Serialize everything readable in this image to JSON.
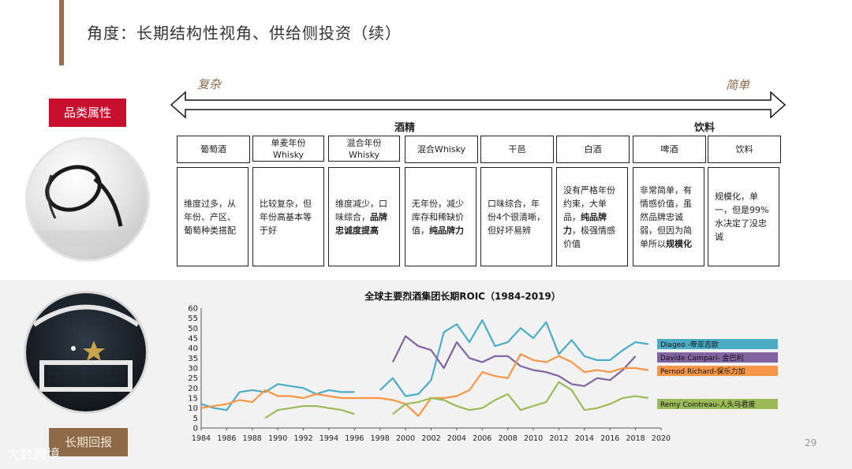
{
  "title": "角度：长期结构性视角、供给侧投资（续）",
  "category_label": "品类属性",
  "bottom_label": "长期回报",
  "arrow": {
    "left": "复杂",
    "right": "简单"
  },
  "groups": {
    "spirits": "酒精",
    "beverages": "饮料"
  },
  "categories": [
    {
      "name": "葡萄酒",
      "desc": "维度过多，从年份、产区、葡萄种类搭配",
      "bold": ""
    },
    {
      "name": "单麦年份 Whisky",
      "desc": "比较复杂，但年份高基本等于好",
      "bold": ""
    },
    {
      "name": "混合年份 Whisky",
      "desc": "维度减少，口味综合，",
      "bold": "品牌忠诚度提高"
    },
    {
      "name": "混合Whisky",
      "desc": "无年份，减少库存和稀缺价值，",
      "bold": "纯品牌力"
    },
    {
      "name": "干邑",
      "desc": "口味综合，年份4个很清晰，但好坏易辨",
      "bold": ""
    },
    {
      "name": "白酒",
      "desc": "没有严格年份约束，大单品，",
      "bold": "纯品牌力",
      "desc_after": "，极强情感价值"
    },
    {
      "name": "啤酒",
      "desc": "非常简单，有情感价值，虽然品牌忠诚弱，但因为简单所以",
      "bold": "规模化"
    },
    {
      "name": "饮料",
      "desc": "规模化，单一，但是99%水决定了没忠诚",
      "bold": ""
    }
  ],
  "page_number": "29",
  "watermark": "大数跨境",
  "chart_data": {
    "type": "line",
    "title": "全球主要烈酒集团长期ROIC（1984-2019）",
    "xlim": [
      1984,
      2020
    ],
    "ylim": [
      0,
      60
    ],
    "xticks": [
      "1984",
      "1986",
      "1988",
      "1990",
      "1992",
      "1994",
      "1996",
      "1998",
      "2000",
      "2002",
      "2004",
      "2006",
      "2008",
      "2010",
      "2012",
      "2014",
      "2016",
      "2018",
      "2020"
    ],
    "yticks": [
      "0",
      "5",
      "10",
      "15",
      "20",
      "25",
      "30",
      "35",
      "40",
      "45",
      "50",
      "55",
      "60"
    ],
    "grid": false,
    "legend": "right",
    "series": [
      {
        "name": "Diageo -帝亚吉欧",
        "color": "#4bacc6",
        "segments": [
          [
            [
              1984,
              12
            ],
            [
              1985,
              10
            ],
            [
              1986,
              9
            ],
            [
              1987,
              18
            ],
            [
              1988,
              19
            ],
            [
              1989,
              18
            ],
            [
              1990,
              22
            ],
            [
              1991,
              21
            ],
            [
              1992,
              20
            ],
            [
              1993,
              17
            ],
            [
              1994,
              19
            ],
            [
              1995,
              18
            ],
            [
              1996,
              18
            ]
          ],
          [
            [
              1998,
              19
            ],
            [
              1999,
              25
            ],
            [
              2000,
              16
            ],
            [
              2001,
              17
            ],
            [
              2002,
              24
            ],
            [
              2003,
              48
            ],
            [
              2004,
              52
            ],
            [
              2005,
              43
            ],
            [
              2006,
              54
            ],
            [
              2007,
              41
            ],
            [
              2008,
              43
            ],
            [
              2009,
              50
            ],
            [
              2010,
              45
            ],
            [
              2011,
              53
            ],
            [
              2012,
              37
            ],
            [
              2013,
              44
            ],
            [
              2014,
              36
            ],
            [
              2015,
              34
            ],
            [
              2016,
              34
            ],
            [
              2017,
              39
            ],
            [
              2018,
              43
            ],
            [
              2019,
              42
            ]
          ]
        ]
      },
      {
        "name": "Davide Campari- 金巴利",
        "color": "#8064a2",
        "segments": [
          [
            [
              1999,
              33
            ],
            [
              2000,
              46
            ],
            [
              2001,
              41
            ],
            [
              2002,
              39
            ],
            [
              2003,
              30
            ],
            [
              2004,
              43
            ],
            [
              2005,
              35
            ],
            [
              2006,
              33
            ],
            [
              2007,
              36
            ],
            [
              2008,
              36
            ],
            [
              2009,
              31
            ],
            [
              2010,
              29
            ],
            [
              2011,
              28
            ],
            [
              2012,
              26
            ],
            [
              2013,
              22
            ],
            [
              2014,
              21
            ],
            [
              2015,
              25
            ],
            [
              2016,
              24
            ],
            [
              2017,
              29
            ],
            [
              2018,
              36
            ]
          ]
        ]
      },
      {
        "name": "Pernod Richard-保乐力加",
        "color": "#f79646",
        "segments": [
          [
            [
              1984,
              10
            ],
            [
              1985,
              11
            ],
            [
              1986,
              12
            ],
            [
              1987,
              14
            ],
            [
              1988,
              13
            ],
            [
              1989,
              19
            ],
            [
              1990,
              16
            ],
            [
              1991,
              16
            ],
            [
              1992,
              15
            ],
            [
              1993,
              17
            ],
            [
              1994,
              16
            ],
            [
              1995,
              15
            ],
            [
              1996,
              15
            ],
            [
              1997,
              15
            ],
            [
              1998,
              15
            ],
            [
              1999,
              14
            ],
            [
              2000,
              12
            ],
            [
              2001,
              6
            ],
            [
              2002,
              15
            ],
            [
              2003,
              15
            ],
            [
              2004,
              16
            ],
            [
              2005,
              19
            ],
            [
              2006,
              28
            ],
            [
              2007,
              26
            ],
            [
              2008,
              25
            ],
            [
              2009,
              37
            ],
            [
              2010,
              34
            ],
            [
              2011,
              33
            ],
            [
              2012,
              36
            ],
            [
              2013,
              33
            ],
            [
              2014,
              28
            ],
            [
              2015,
              29
            ],
            [
              2016,
              28
            ],
            [
              2017,
              30
            ],
            [
              2018,
              30
            ],
            [
              2019,
              29
            ]
          ]
        ]
      },
      {
        "name": "Remy Cointreau-人头马君度",
        "color": "#9bbb59",
        "segments": [
          [
            [
              1989,
              5
            ],
            [
              1990,
              9
            ],
            [
              1991,
              10
            ],
            [
              1992,
              11
            ],
            [
              1993,
              11
            ],
            [
              1994,
              10
            ],
            [
              1995,
              9
            ],
            [
              1996,
              7
            ]
          ],
          [
            [
              1999,
              7
            ],
            [
              2000,
              12
            ],
            [
              2001,
              13
            ],
            [
              2002,
              15
            ],
            [
              2003,
              14
            ],
            [
              2004,
              11
            ],
            [
              2005,
              9
            ],
            [
              2006,
              10
            ],
            [
              2007,
              14
            ],
            [
              2008,
              17
            ],
            [
              2009,
              9
            ],
            [
              2010,
              11
            ],
            [
              2011,
              13
            ],
            [
              2012,
              23
            ],
            [
              2013,
              19
            ],
            [
              2014,
              9
            ],
            [
              2015,
              10
            ],
            [
              2016,
              12
            ],
            [
              2017,
              15
            ],
            [
              2018,
              16
            ],
            [
              2019,
              15
            ]
          ]
        ]
      }
    ]
  }
}
